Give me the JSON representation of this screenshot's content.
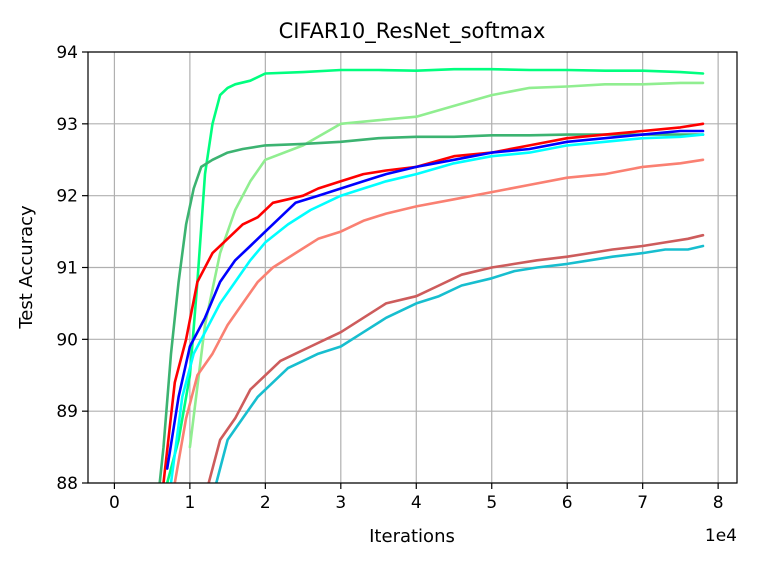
{
  "chart_data": {
    "type": "line",
    "title": "CIFAR10_ResNet_softmax",
    "xlabel": "Iterations",
    "ylabel": "Test Accuracy",
    "x_offset_text": "1e4",
    "xlim": [
      -0.35,
      8.25
    ],
    "ylim": [
      88,
      94
    ],
    "x_ticks": [
      0,
      1,
      2,
      3,
      4,
      5,
      6,
      7,
      8
    ],
    "y_ticks": [
      88,
      89,
      90,
      91,
      92,
      93,
      94
    ],
    "x_tick_labels": [
      "0",
      "1",
      "2",
      "3",
      "4",
      "5",
      "6",
      "7",
      "8"
    ],
    "y_tick_labels": [
      "88",
      "89",
      "90",
      "91",
      "92",
      "93",
      "94"
    ],
    "grid": true,
    "series": [
      {
        "color": "#00FF7F",
        "x": [
          0.55,
          0.7,
          0.85,
          1.0,
          1.1,
          1.2,
          1.3,
          1.4,
          1.5,
          1.6,
          1.8,
          2.0,
          2.5,
          3.0,
          3.5,
          4.0,
          4.5,
          5.0,
          5.5,
          6.0,
          6.5,
          7.0,
          7.5,
          7.8
        ],
        "y": [
          87.6,
          88.0,
          88.6,
          89.5,
          90.8,
          92.3,
          93.0,
          93.4,
          93.5,
          93.55,
          93.6,
          93.7,
          93.72,
          93.75,
          93.75,
          93.74,
          93.76,
          93.76,
          93.75,
          93.75,
          93.74,
          93.74,
          93.72,
          93.7
        ]
      },
      {
        "color": "#90EE90",
        "x": [
          1.0,
          1.2,
          1.4,
          1.6,
          1.8,
          2.0,
          2.5,
          3.0,
          3.5,
          4.0,
          4.5,
          5.0,
          5.5,
          6.0,
          6.5,
          7.0,
          7.5,
          7.8
        ],
        "y": [
          88.5,
          90.2,
          91.2,
          91.8,
          92.2,
          92.5,
          92.7,
          93.0,
          93.05,
          93.1,
          93.25,
          93.4,
          93.5,
          93.52,
          93.55,
          93.55,
          93.57,
          93.57
        ]
      },
      {
        "color": "#3CB371",
        "x": [
          0.55,
          0.65,
          0.75,
          0.85,
          0.95,
          1.05,
          1.15,
          1.3,
          1.5,
          1.7,
          2.0,
          2.5,
          3.0,
          3.5,
          4.0,
          4.5,
          5.0,
          5.5,
          6.0,
          6.5,
          7.0,
          7.5,
          7.8
        ],
        "y": [
          87.5,
          88.5,
          89.8,
          90.8,
          91.6,
          92.1,
          92.4,
          92.5,
          92.6,
          92.65,
          92.7,
          92.72,
          92.75,
          92.8,
          92.82,
          92.82,
          92.84,
          92.84,
          92.85,
          92.85,
          92.85,
          92.85,
          92.85
        ]
      },
      {
        "color": "#FF0000",
        "x": [
          0.65,
          0.8,
          0.95,
          1.1,
          1.3,
          1.5,
          1.7,
          1.9,
          2.1,
          2.3,
          2.5,
          2.7,
          3.0,
          3.3,
          3.6,
          4.0,
          4.5,
          5.0,
          5.5,
          6.0,
          6.5,
          7.0,
          7.5,
          7.8
        ],
        "y": [
          88.0,
          89.4,
          90.0,
          90.8,
          91.2,
          91.4,
          91.6,
          91.7,
          91.9,
          91.95,
          92.0,
          92.1,
          92.2,
          92.3,
          92.35,
          92.4,
          92.55,
          92.6,
          92.7,
          92.8,
          92.85,
          92.9,
          92.95,
          93.0
        ]
      },
      {
        "color": "#0000FF",
        "x": [
          0.7,
          0.85,
          1.0,
          1.2,
          1.4,
          1.6,
          1.8,
          2.0,
          2.2,
          2.4,
          2.7,
          3.0,
          3.3,
          3.6,
          4.0,
          4.5,
          5.0,
          5.5,
          6.0,
          6.5,
          7.0,
          7.5,
          7.8
        ],
        "y": [
          88.2,
          89.2,
          89.9,
          90.3,
          90.8,
          91.1,
          91.3,
          91.5,
          91.7,
          91.9,
          92.0,
          92.1,
          92.2,
          92.3,
          92.4,
          92.5,
          92.6,
          92.65,
          92.75,
          92.8,
          92.85,
          92.9,
          92.9
        ]
      },
      {
        "color": "#00FFFF",
        "x": [
          0.75,
          0.9,
          1.05,
          1.2,
          1.4,
          1.6,
          1.8,
          2.0,
          2.3,
          2.6,
          3.0,
          3.3,
          3.6,
          4.0,
          4.5,
          5.0,
          5.5,
          6.0,
          6.5,
          7.0,
          7.5,
          7.8
        ],
        "y": [
          88.0,
          89.2,
          89.8,
          90.1,
          90.5,
          90.8,
          91.1,
          91.35,
          91.6,
          91.8,
          92.0,
          92.1,
          92.2,
          92.3,
          92.45,
          92.55,
          92.6,
          92.7,
          92.75,
          92.8,
          92.82,
          92.85
        ]
      },
      {
        "color": "#FA8072",
        "x": [
          0.8,
          0.95,
          1.1,
          1.3,
          1.5,
          1.7,
          1.9,
          2.1,
          2.4,
          2.7,
          3.0,
          3.3,
          3.6,
          4.0,
          4.5,
          5.0,
          5.5,
          6.0,
          6.5,
          7.0,
          7.5,
          7.8
        ],
        "y": [
          88.0,
          88.9,
          89.5,
          89.8,
          90.2,
          90.5,
          90.8,
          91.0,
          91.2,
          91.4,
          91.5,
          91.65,
          91.75,
          91.85,
          91.95,
          92.05,
          92.15,
          92.25,
          92.3,
          92.4,
          92.45,
          92.5
        ]
      },
      {
        "color": "#CD5C5C",
        "x": [
          1.25,
          1.4,
          1.6,
          1.8,
          2.0,
          2.2,
          2.4,
          2.6,
          2.8,
          3.0,
          3.3,
          3.6,
          4.0,
          4.3,
          4.6,
          5.0,
          5.3,
          5.6,
          6.0,
          6.3,
          6.6,
          7.0,
          7.3,
          7.6,
          7.8
        ],
        "y": [
          88.0,
          88.6,
          88.9,
          89.3,
          89.5,
          89.7,
          89.8,
          89.9,
          90.0,
          90.1,
          90.3,
          90.5,
          90.6,
          90.75,
          90.9,
          91.0,
          91.05,
          91.1,
          91.15,
          91.2,
          91.25,
          91.3,
          91.35,
          91.4,
          91.45
        ]
      },
      {
        "color": "#17BECF",
        "x": [
          1.35,
          1.5,
          1.7,
          1.9,
          2.1,
          2.3,
          2.5,
          2.7,
          3.0,
          3.3,
          3.6,
          4.0,
          4.3,
          4.6,
          5.0,
          5.3,
          5.6,
          6.0,
          6.3,
          6.6,
          7.0,
          7.3,
          7.6,
          7.8
        ],
        "y": [
          88.0,
          88.6,
          88.9,
          89.2,
          89.4,
          89.6,
          89.7,
          89.8,
          89.9,
          90.1,
          90.3,
          90.5,
          90.6,
          90.75,
          90.85,
          90.95,
          91.0,
          91.05,
          91.1,
          91.15,
          91.2,
          91.25,
          91.25,
          91.3
        ]
      }
    ]
  }
}
